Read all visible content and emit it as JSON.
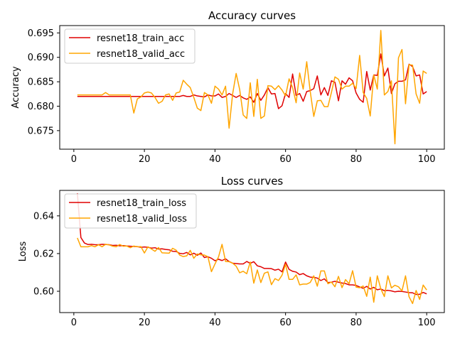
{
  "chart_data": [
    {
      "type": "line",
      "title": "Accuracy curves",
      "xlabel": "",
      "ylabel": "Accuracy",
      "xlim": [
        -4,
        105
      ],
      "ylim": [
        0.6712,
        0.6965
      ],
      "xticks": [
        0,
        20,
        40,
        60,
        80,
        100
      ],
      "yticks": [
        0.675,
        0.68,
        0.685,
        0.69,
        0.695
      ],
      "ytick_labels": [
        "0.675",
        "0.680",
        "0.685",
        "0.690",
        "0.695"
      ],
      "grid": false,
      "legend_position": "upper-left",
      "x": [
        1,
        2,
        3,
        4,
        5,
        6,
        7,
        8,
        9,
        10,
        11,
        12,
        13,
        14,
        15,
        16,
        17,
        18,
        19,
        20,
        21,
        22,
        23,
        24,
        25,
        26,
        27,
        28,
        29,
        30,
        31,
        32,
        33,
        34,
        35,
        36,
        37,
        38,
        39,
        40,
        41,
        42,
        43,
        44,
        45,
        46,
        47,
        48,
        49,
        50,
        51,
        52,
        53,
        54,
        55,
        56,
        57,
        58,
        59,
        60,
        61,
        62,
        63,
        64,
        65,
        66,
        67,
        68,
        69,
        70,
        71,
        72,
        73,
        74,
        75,
        76,
        77,
        78,
        79,
        80,
        81,
        82,
        83,
        84,
        85,
        86,
        87,
        88,
        89,
        90,
        91,
        92,
        93,
        94,
        95,
        96,
        97,
        98,
        99,
        100
      ],
      "series": [
        {
          "name": "resnet18_train_acc",
          "color": "#e00000",
          "values": [
            0.682,
            0.682,
            0.682,
            0.682,
            0.682,
            0.682,
            0.682,
            0.682,
            0.682,
            0.682,
            0.682,
            0.682,
            0.682,
            0.682,
            0.682,
            0.682,
            0.682,
            0.682,
            0.682,
            0.682,
            0.682,
            0.682,
            0.682,
            0.682,
            0.682,
            0.682,
            0.682,
            0.682,
            0.682,
            0.682,
            0.6822,
            0.682,
            0.682,
            0.6823,
            0.6821,
            0.682,
            0.6819,
            0.6823,
            0.6821,
            0.6821,
            0.6825,
            0.6818,
            0.682,
            0.6826,
            0.6822,
            0.6818,
            0.6822,
            0.6817,
            0.6814,
            0.6819,
            0.6808,
            0.6826,
            0.6812,
            0.6823,
            0.6838,
            0.6825,
            0.6826,
            0.6795,
            0.6801,
            0.6826,
            0.6818,
            0.6866,
            0.6822,
            0.6826,
            0.681,
            0.683,
            0.6832,
            0.6836,
            0.6862,
            0.6823,
            0.6838,
            0.6822,
            0.6852,
            0.6849,
            0.6811,
            0.6852,
            0.6845,
            0.6858,
            0.6852,
            0.6827,
            0.6814,
            0.6808,
            0.6871,
            0.6833,
            0.6864,
            0.6863,
            0.6907,
            0.6862,
            0.6878,
            0.6826,
            0.6846,
            0.6851,
            0.6851,
            0.6854,
            0.6886,
            0.6881,
            0.6862,
            0.6864,
            0.6825,
            0.683
          ]
        },
        {
          "name": "resnet18_valid_acc",
          "color": "#ffa500",
          "values": [
            0.6823,
            0.6823,
            0.6823,
            0.6823,
            0.6823,
            0.6823,
            0.6823,
            0.6823,
            0.6828,
            0.6823,
            0.6823,
            0.6823,
            0.6823,
            0.6823,
            0.6823,
            0.6823,
            0.6786,
            0.6815,
            0.6819,
            0.6827,
            0.6829,
            0.6827,
            0.6818,
            0.6806,
            0.681,
            0.6823,
            0.6825,
            0.6812,
            0.6827,
            0.6829,
            0.6853,
            0.6845,
            0.6838,
            0.6818,
            0.6796,
            0.6791,
            0.6828,
            0.6823,
            0.6806,
            0.6841,
            0.6835,
            0.6823,
            0.6841,
            0.6755,
            0.6825,
            0.6867,
            0.6834,
            0.6782,
            0.6775,
            0.6848,
            0.6779,
            0.6855,
            0.6775,
            0.678,
            0.6842,
            0.6841,
            0.6834,
            0.6842,
            0.6833,
            0.6821,
            0.6856,
            0.6838,
            0.6807,
            0.6868,
            0.6835,
            0.6891,
            0.683,
            0.6779,
            0.6811,
            0.6812,
            0.6799,
            0.6799,
            0.6828,
            0.686,
            0.6855,
            0.6835,
            0.6841,
            0.6841,
            0.6847,
            0.6836,
            0.6904,
            0.6828,
            0.6816,
            0.678,
            0.6864,
            0.6835,
            0.6955,
            0.6823,
            0.683,
            0.6852,
            0.6723,
            0.6899,
            0.6916,
            0.6805,
            0.6885,
            0.6884,
            0.6825,
            0.6806,
            0.6872,
            0.6867
          ]
        }
      ]
    },
    {
      "type": "line",
      "title": "Loss curves",
      "xlabel": "",
      "ylabel": "Loss",
      "xlim": [
        -4,
        105
      ],
      "ylim": [
        0.5887,
        0.6535
      ],
      "xticks": [
        0,
        20,
        40,
        60,
        80,
        100
      ],
      "yticks": [
        0.6,
        0.62,
        0.64
      ],
      "ytick_labels": [
        "0.60",
        "0.62",
        "0.64"
      ],
      "grid": false,
      "legend_position": "upper-left",
      "x": [
        1,
        2,
        3,
        4,
        5,
        6,
        7,
        8,
        9,
        10,
        11,
        12,
        13,
        14,
        15,
        16,
        17,
        18,
        19,
        20,
        21,
        22,
        23,
        24,
        25,
        26,
        27,
        28,
        29,
        30,
        31,
        32,
        33,
        34,
        35,
        36,
        37,
        38,
        39,
        40,
        41,
        42,
        43,
        44,
        45,
        46,
        47,
        48,
        49,
        50,
        51,
        52,
        53,
        54,
        55,
        56,
        57,
        58,
        59,
        60,
        61,
        62,
        63,
        64,
        65,
        66,
        67,
        68,
        69,
        70,
        71,
        72,
        73,
        74,
        75,
        76,
        77,
        78,
        79,
        80,
        81,
        82,
        83,
        84,
        85,
        86,
        87,
        88,
        89,
        90,
        91,
        92,
        93,
        94,
        95,
        96,
        97,
        98,
        99,
        100
      ],
      "series": [
        {
          "name": "resnet18_train_loss",
          "color": "#e00000",
          "values": [
            0.652,
            0.6285,
            0.6256,
            0.6248,
            0.6249,
            0.6247,
            0.6247,
            0.6249,
            0.6248,
            0.6247,
            0.6243,
            0.6244,
            0.6241,
            0.6242,
            0.624,
            0.6239,
            0.6238,
            0.6237,
            0.6233,
            0.6235,
            0.6233,
            0.6229,
            0.6231,
            0.6224,
            0.6225,
            0.6222,
            0.622,
            0.6212,
            0.6211,
            0.6201,
            0.6199,
            0.6206,
            0.6193,
            0.6202,
            0.6191,
            0.6203,
            0.6179,
            0.6183,
            0.6175,
            0.6162,
            0.617,
            0.6163,
            0.6172,
            0.6158,
            0.6149,
            0.6147,
            0.6145,
            0.6145,
            0.6158,
            0.6148,
            0.6157,
            0.6135,
            0.613,
            0.6121,
            0.6121,
            0.612,
            0.6112,
            0.6117,
            0.6103,
            0.6155,
            0.6116,
            0.6106,
            0.6102,
            0.6088,
            0.6094,
            0.6082,
            0.6075,
            0.6074,
            0.607,
            0.6057,
            0.6066,
            0.6046,
            0.6048,
            0.6053,
            0.6048,
            0.6044,
            0.6041,
            0.6034,
            0.6034,
            0.6031,
            0.6023,
            0.6016,
            0.6026,
            0.6012,
            0.6021,
            0.6008,
            0.6012,
            0.6003,
            0.6005,
            0.6002,
            0.5997,
            0.6,
            0.5999,
            0.5996,
            0.5993,
            0.5992,
            0.5983,
            0.5984,
            0.5994,
            0.5986
          ]
        },
        {
          "name": "resnet18_valid_loss",
          "color": "#ffa500",
          "values": [
            0.6283,
            0.6236,
            0.6236,
            0.6236,
            0.6242,
            0.6236,
            0.6247,
            0.6236,
            0.6249,
            0.6246,
            0.6239,
            0.6236,
            0.6248,
            0.6239,
            0.624,
            0.6231,
            0.624,
            0.6236,
            0.6237,
            0.6203,
            0.6236,
            0.6224,
            0.6212,
            0.6232,
            0.6204,
            0.6203,
            0.6202,
            0.6228,
            0.6218,
            0.6192,
            0.6184,
            0.6188,
            0.6217,
            0.6175,
            0.6198,
            0.6193,
            0.6192,
            0.6183,
            0.6104,
            0.6145,
            0.6182,
            0.6249,
            0.6158,
            0.6157,
            0.6149,
            0.6133,
            0.6098,
            0.6106,
            0.6093,
            0.6155,
            0.6043,
            0.6113,
            0.6046,
            0.6096,
            0.6103,
            0.6035,
            0.6067,
            0.6057,
            0.6085,
            0.6143,
            0.6063,
            0.6063,
            0.6087,
            0.6034,
            0.6038,
            0.6038,
            0.6047,
            0.6082,
            0.6027,
            0.6108,
            0.6108,
            0.604,
            0.6049,
            0.6024,
            0.6079,
            0.6019,
            0.6062,
            0.604,
            0.6109,
            0.6022,
            0.6019,
            0.6028,
            0.5973,
            0.6075,
            0.5942,
            0.6082,
            0.6013,
            0.5972,
            0.6082,
            0.6018,
            0.6032,
            0.6024,
            0.6002,
            0.6082,
            0.5971,
            0.5935,
            0.6004,
            0.5957,
            0.6033,
            0.6007
          ]
        }
      ]
    }
  ]
}
